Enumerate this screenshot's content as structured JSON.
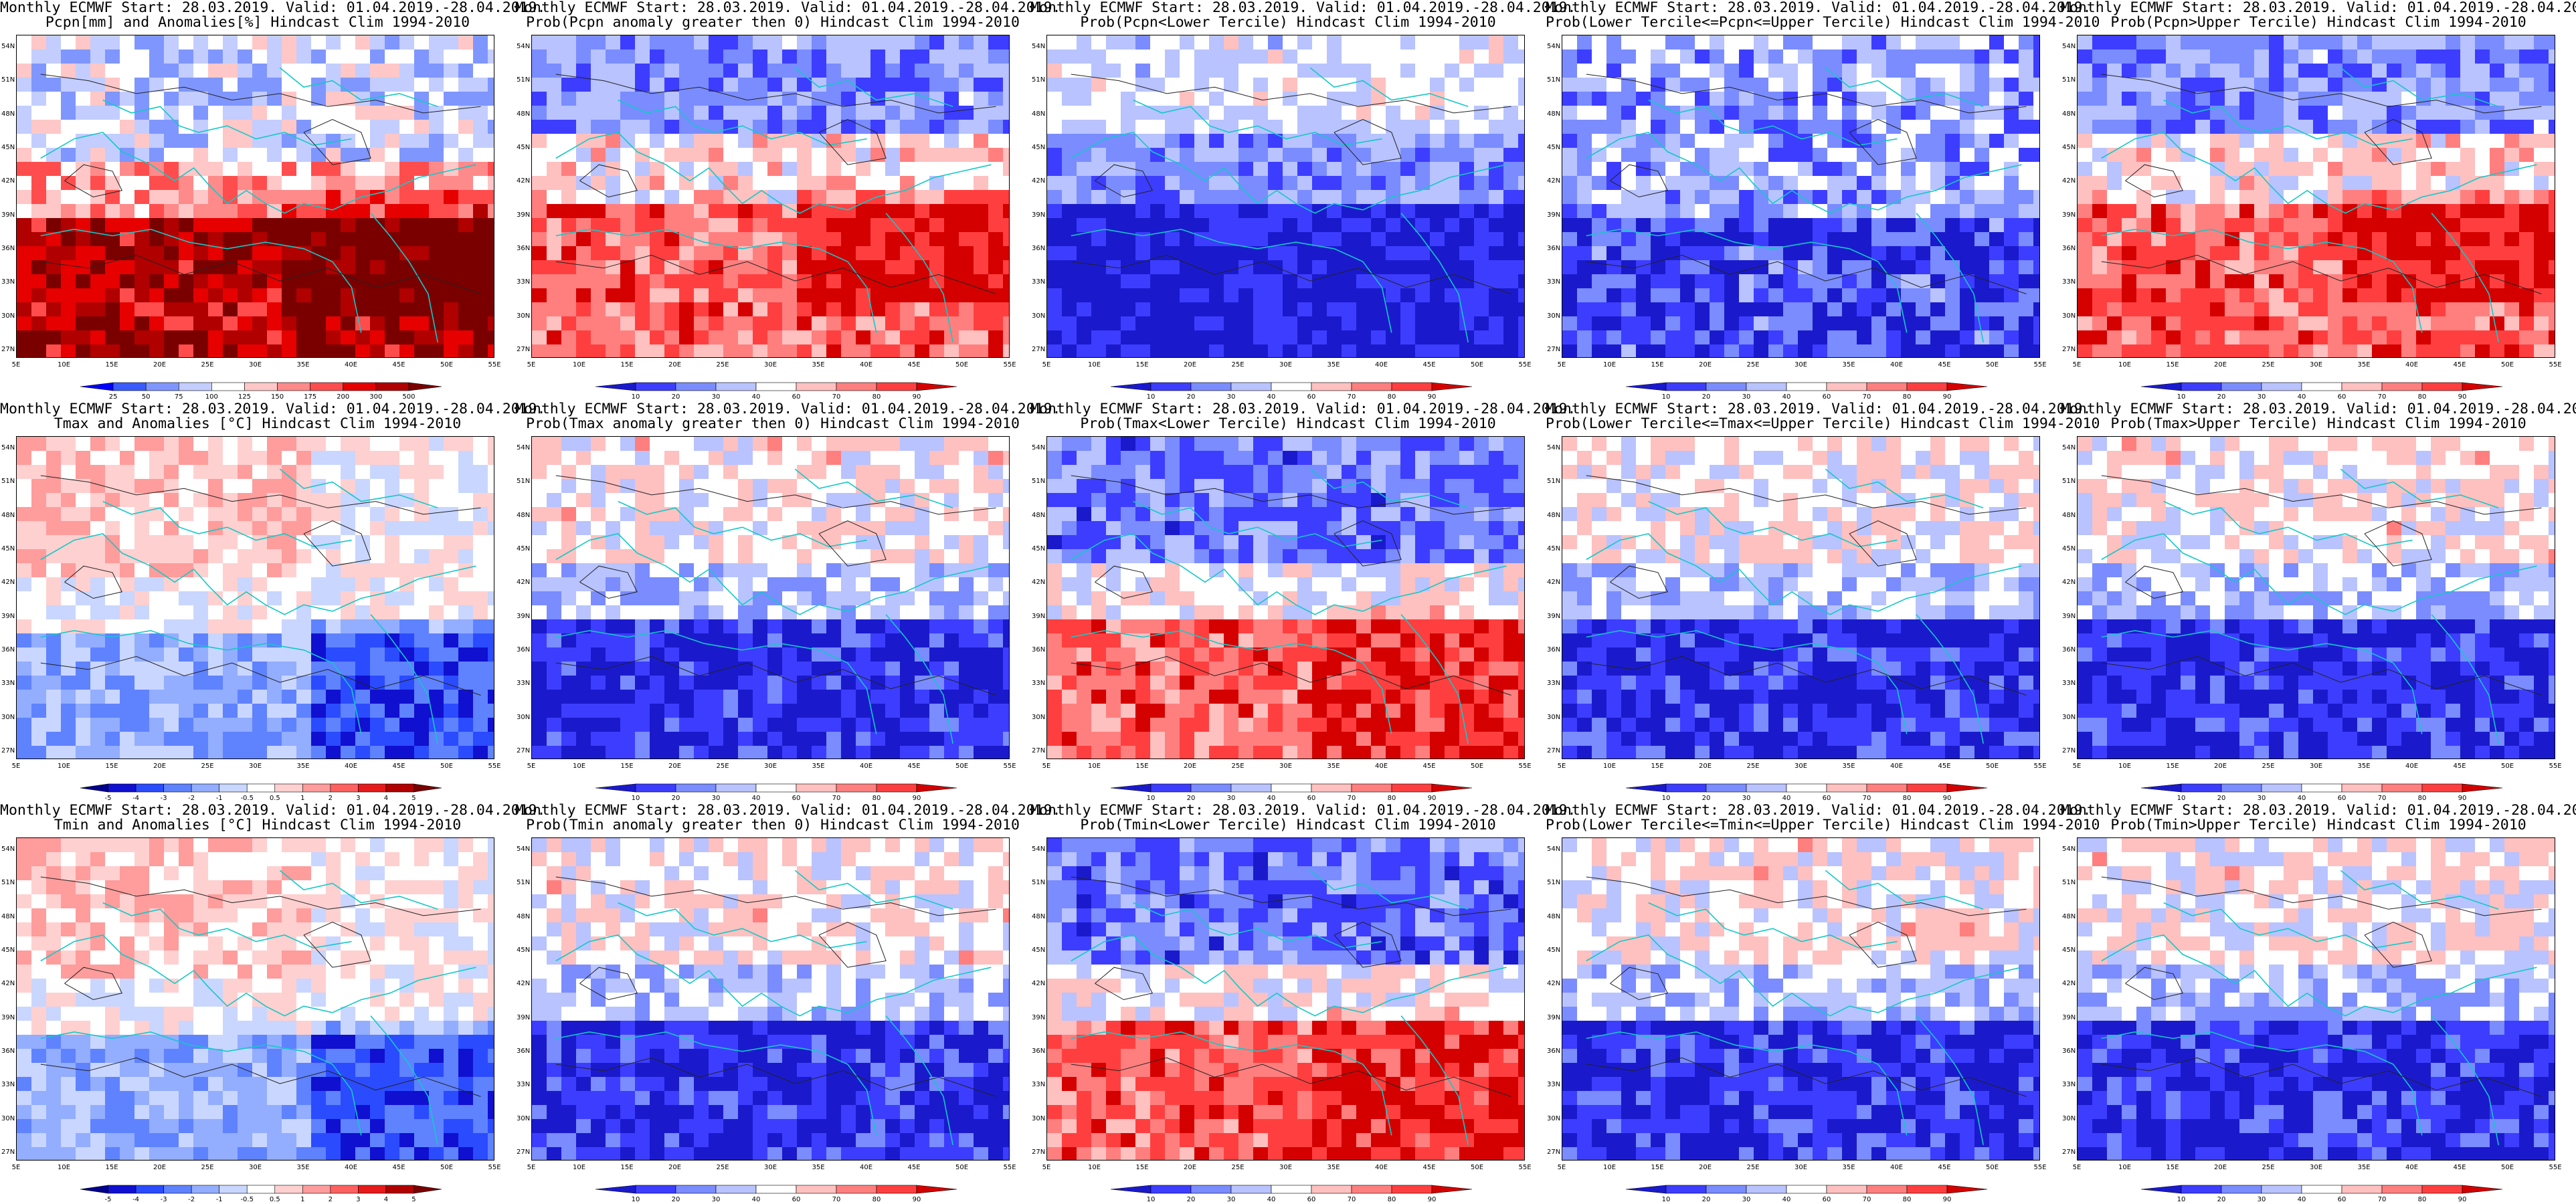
{
  "header_line1": "Monthly ECMWF Start: 28.03.2019. Valid: 01.04.2019.-28.04.2019.",
  "map_axes": {
    "lat_labels": [
      "54N",
      "51N",
      "48N",
      "45N",
      "42N",
      "39N",
      "36N",
      "33N",
      "30N",
      "27N"
    ],
    "lon_labels": [
      "5E",
      "10E",
      "15E",
      "20E",
      "25E",
      "30E",
      "35E",
      "40E",
      "45E",
      "50E",
      "55E"
    ]
  },
  "colorbars": {
    "precip_anom": {
      "ticks": [
        "25",
        "50",
        "75",
        "100",
        "125",
        "150",
        "175",
        "200",
        "300",
        "500"
      ],
      "colors": [
        "#0000ff",
        "#3a5cff",
        "#7f96ff",
        "#c3cdff",
        "#ffffff",
        "#ffc7c7",
        "#ff8a8a",
        "#ff4d4d",
        "#e60000",
        "#b00000",
        "#7a0000"
      ]
    },
    "prob": {
      "ticks": [
        "10",
        "20",
        "30",
        "40",
        "60",
        "70",
        "80",
        "90"
      ],
      "colors": [
        "#1a1acc",
        "#3d3dff",
        "#7a8cff",
        "#b8c3ff",
        "#ffffff",
        "#ffc0c0",
        "#ff7f7f",
        "#ff3f3f",
        "#d40000"
      ]
    },
    "temp_anom": {
      "ticks": [
        "-5",
        "-4",
        "-3",
        "-2",
        "-1",
        "-0.5",
        "0.5",
        "1",
        "2",
        "3",
        "4",
        "5"
      ],
      "colors": [
        "#00008b",
        "#1010d0",
        "#2b4bff",
        "#5f82ff",
        "#93adff",
        "#c9d6ff",
        "#ffffff",
        "#ffd0d0",
        "#ff9c9c",
        "#ff6060",
        "#e61a1a",
        "#b00000",
        "#7a0000"
      ]
    }
  },
  "panels": [
    {
      "line2": "Pcpn[mm] and Anomalies[%] Hindcast Clim 1994-2010",
      "colorbar": "precip_anom",
      "field": "precip_anom"
    },
    {
      "line2": "Prob(Pcpn anomaly greater then 0) Hindcast Clim 1994-2010",
      "colorbar": "prob",
      "field": "precip_prob"
    },
    {
      "line2": "Prob(Pcpn<Lower Tercile) Hindcast Clim 1994-2010",
      "colorbar": "prob",
      "field": "blue_heavy"
    },
    {
      "line2": "Prob(Lower Tercile<=Pcpn<=Upper Tercile) Hindcast Clim 1994-2010",
      "colorbar": "prob",
      "field": "mixed_blue"
    },
    {
      "line2": "Prob(Pcpn>Upper Tercile) Hindcast Clim 1994-2010",
      "colorbar": "prob",
      "field": "precip_prob"
    },
    {
      "line2": "Tmax and Anomalies [°C] Hindcast Clim 1994-2010",
      "colorbar": "temp_anom",
      "field": "temp_anom"
    },
    {
      "line2": "Prob(Tmax anomaly greater then 0) Hindcast Clim 1994-2010",
      "colorbar": "prob",
      "field": "temp_prob_cold"
    },
    {
      "line2": "Prob(Tmax<Lower Tercile) Hindcast Clim 1994-2010",
      "colorbar": "prob",
      "field": "temp_prob_warm"
    },
    {
      "line2": "Prob(Lower Tercile<=Tmax<=Upper Tercile) Hindcast Clim 1994-2010",
      "colorbar": "prob",
      "field": "temp_prob_cold"
    },
    {
      "line2": "Prob(Tmax>Upper Tercile) Hindcast Clim 1994-2010",
      "colorbar": "prob",
      "field": "temp_prob_cold"
    },
    {
      "line2": "Tmin and Anomalies [°C] Hindcast Clim 1994-2010",
      "colorbar": "temp_anom",
      "field": "temp_anom"
    },
    {
      "line2": "Prob(Tmin anomaly greater then 0) Hindcast Clim 1994-2010",
      "colorbar": "prob",
      "field": "temp_prob_cold"
    },
    {
      "line2": "Prob(Tmin<Lower Tercile) Hindcast Clim 1994-2010",
      "colorbar": "prob",
      "field": "temp_prob_warm"
    },
    {
      "line2": "Prob(Lower Tercile<=Tmin<=Upper Tercile) Hindcast Clim 1994-2010",
      "colorbar": "prob",
      "field": "temp_prob_cold"
    },
    {
      "line2": "Prob(Tmin>Upper Tercile) Hindcast Clim 1994-2010",
      "colorbar": "prob",
      "field": "temp_prob_cold"
    }
  ]
}
